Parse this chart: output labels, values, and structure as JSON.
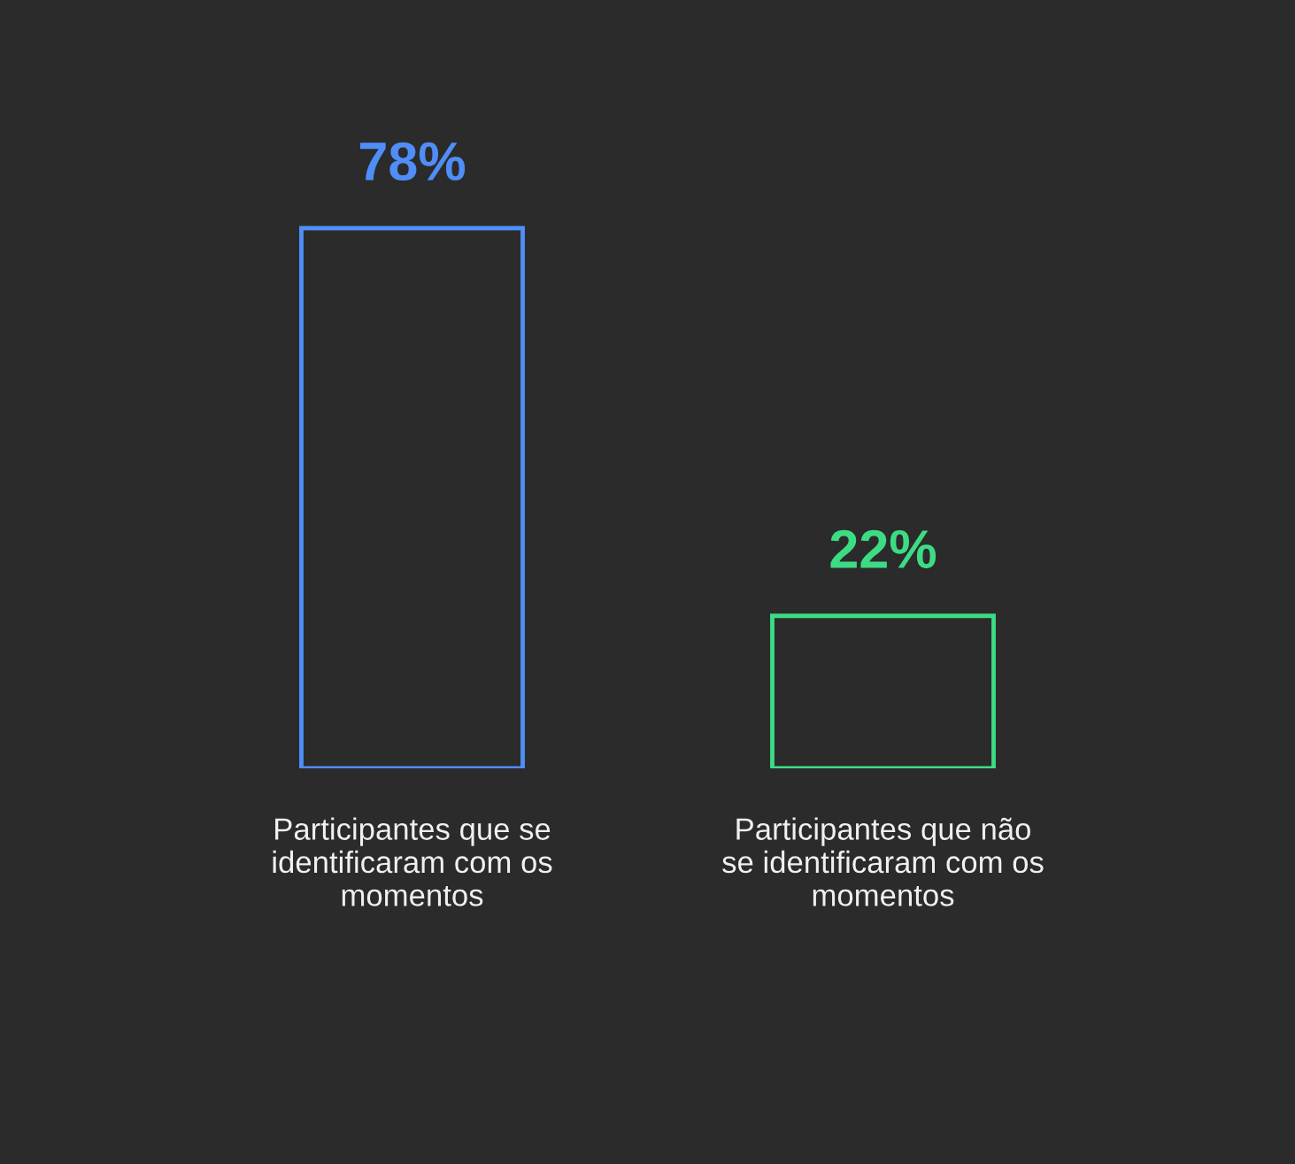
{
  "chart_data": {
    "type": "bar",
    "categories": [
      "Participantes que se\nidentificaram com os\nmomentos",
      "Participantes que não\nse identificaram com os\nmomentos"
    ],
    "values": [
      78,
      22
    ],
    "colors": [
      "#4f8ef7",
      "#3ddc84"
    ],
    "value_labels": [
      "78%",
      "22%"
    ]
  }
}
